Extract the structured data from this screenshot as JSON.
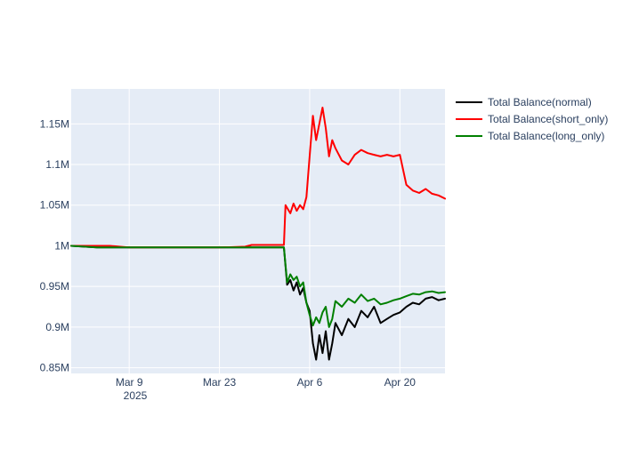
{
  "chart_data": {
    "type": "line",
    "title": "",
    "xlabel": "",
    "ylabel": "",
    "x_axis": {
      "type": "date",
      "range": [
        "2025-02-28",
        "2025-04-27"
      ],
      "tick_values": [
        "2025-03-09",
        "2025-03-23",
        "2025-04-06",
        "2025-04-20"
      ],
      "tick_labels": [
        "Mar 9",
        "Mar 23",
        "Apr 6",
        "Apr 20"
      ],
      "year_label": "2025"
    },
    "y_axis": {
      "range": [
        843000,
        1193000
      ],
      "tick_values": [
        850000,
        900000,
        950000,
        1000000,
        1050000,
        1100000,
        1150000
      ],
      "tick_labels": [
        "0.85M",
        "0.9M",
        "0.95M",
        "1M",
        "1.05M",
        "1.1M",
        "1.15M"
      ]
    },
    "grid": true,
    "legend_position": "top-right",
    "plot_background": "#e5ecf6",
    "series": [
      {
        "name": "Total Balance(normal)",
        "color": "#000000",
        "points": [
          [
            "2025-02-28",
            1000000
          ],
          [
            "2025-03-02",
            999000
          ],
          [
            "2025-03-04",
            998000
          ],
          [
            "2025-03-06",
            998000
          ],
          [
            "2025-03-09",
            998000
          ],
          [
            "2025-03-13",
            998000
          ],
          [
            "2025-03-17",
            998000
          ],
          [
            "2025-03-20",
            998000
          ],
          [
            "2025-03-23",
            998000
          ],
          [
            "2025-03-27",
            998000
          ],
          [
            "2025-03-31",
            998000
          ],
          [
            "2025-04-02",
            998000
          ],
          [
            "2025-04-02T12:00",
            952000
          ],
          [
            "2025-04-03",
            958000
          ],
          [
            "2025-04-03T12:00",
            945000
          ],
          [
            "2025-04-04",
            955000
          ],
          [
            "2025-04-04T12:00",
            940000
          ],
          [
            "2025-04-05",
            948000
          ],
          [
            "2025-04-05T12:00",
            930000
          ],
          [
            "2025-04-06",
            920000
          ],
          [
            "2025-04-06T12:00",
            880000
          ],
          [
            "2025-04-07",
            860000
          ],
          [
            "2025-04-07T12:00",
            890000
          ],
          [
            "2025-04-08",
            868000
          ],
          [
            "2025-04-08T12:00",
            895000
          ],
          [
            "2025-04-09",
            860000
          ],
          [
            "2025-04-09T12:00",
            880000
          ],
          [
            "2025-04-10",
            905000
          ],
          [
            "2025-04-11",
            890000
          ],
          [
            "2025-04-12",
            910000
          ],
          [
            "2025-04-13",
            900000
          ],
          [
            "2025-04-14",
            920000
          ],
          [
            "2025-04-15",
            912000
          ],
          [
            "2025-04-16",
            925000
          ],
          [
            "2025-04-17",
            905000
          ],
          [
            "2025-04-18",
            910000
          ],
          [
            "2025-04-19",
            915000
          ],
          [
            "2025-04-20",
            918000
          ],
          [
            "2025-04-21",
            925000
          ],
          [
            "2025-04-22",
            930000
          ],
          [
            "2025-04-23",
            928000
          ],
          [
            "2025-04-24",
            935000
          ],
          [
            "2025-04-25",
            937000
          ],
          [
            "2025-04-26",
            933000
          ],
          [
            "2025-04-27",
            935000
          ]
        ]
      },
      {
        "name": "Total Balance(short_only)",
        "color": "#ff0000",
        "points": [
          [
            "2025-02-28",
            1000000
          ],
          [
            "2025-03-02",
            1000000
          ],
          [
            "2025-03-04",
            1000000
          ],
          [
            "2025-03-06",
            1000000
          ],
          [
            "2025-03-09",
            998000
          ],
          [
            "2025-03-13",
            998000
          ],
          [
            "2025-03-17",
            998000
          ],
          [
            "2025-03-20",
            998000
          ],
          [
            "2025-03-23",
            998000
          ],
          [
            "2025-03-27",
            999000
          ],
          [
            "2025-03-28",
            1001000
          ],
          [
            "2025-03-31",
            1001000
          ],
          [
            "2025-04-02",
            1001000
          ],
          [
            "2025-04-02T06:00",
            1050000
          ],
          [
            "2025-04-03",
            1040000
          ],
          [
            "2025-04-03T12:00",
            1052000
          ],
          [
            "2025-04-04",
            1043000
          ],
          [
            "2025-04-04T12:00",
            1050000
          ],
          [
            "2025-04-05",
            1045000
          ],
          [
            "2025-04-05T12:00",
            1060000
          ],
          [
            "2025-04-06",
            1110000
          ],
          [
            "2025-04-06T12:00",
            1160000
          ],
          [
            "2025-04-07",
            1130000
          ],
          [
            "2025-04-07T12:00",
            1150000
          ],
          [
            "2025-04-08",
            1170000
          ],
          [
            "2025-04-08T12:00",
            1145000
          ],
          [
            "2025-04-09",
            1110000
          ],
          [
            "2025-04-09T12:00",
            1130000
          ],
          [
            "2025-04-10",
            1120000
          ],
          [
            "2025-04-11",
            1105000
          ],
          [
            "2025-04-12",
            1100000
          ],
          [
            "2025-04-13",
            1112000
          ],
          [
            "2025-04-14",
            1118000
          ],
          [
            "2025-04-15",
            1114000
          ],
          [
            "2025-04-16",
            1112000
          ],
          [
            "2025-04-17",
            1110000
          ],
          [
            "2025-04-18",
            1112000
          ],
          [
            "2025-04-19",
            1110000
          ],
          [
            "2025-04-20",
            1112000
          ],
          [
            "2025-04-21",
            1075000
          ],
          [
            "2025-04-22",
            1068000
          ],
          [
            "2025-04-23",
            1065000
          ],
          [
            "2025-04-24",
            1070000
          ],
          [
            "2025-04-25",
            1064000
          ],
          [
            "2025-04-26",
            1062000
          ],
          [
            "2025-04-27",
            1058000
          ]
        ]
      },
      {
        "name": "Total Balance(long_only)",
        "color": "#008000",
        "points": [
          [
            "2025-02-28",
            1000000
          ],
          [
            "2025-03-02",
            999000
          ],
          [
            "2025-03-04",
            998000
          ],
          [
            "2025-03-06",
            998000
          ],
          [
            "2025-03-09",
            998000
          ],
          [
            "2025-03-13",
            998000
          ],
          [
            "2025-03-17",
            998000
          ],
          [
            "2025-03-20",
            998000
          ],
          [
            "2025-03-23",
            998000
          ],
          [
            "2025-03-27",
            998000
          ],
          [
            "2025-03-31",
            998000
          ],
          [
            "2025-04-02",
            998000
          ],
          [
            "2025-04-02T12:00",
            955000
          ],
          [
            "2025-04-03",
            965000
          ],
          [
            "2025-04-03T12:00",
            958000
          ],
          [
            "2025-04-04",
            962000
          ],
          [
            "2025-04-04T12:00",
            950000
          ],
          [
            "2025-04-05",
            955000
          ],
          [
            "2025-04-05T12:00",
            930000
          ],
          [
            "2025-04-06",
            915000
          ],
          [
            "2025-04-06T12:00",
            902000
          ],
          [
            "2025-04-07",
            912000
          ],
          [
            "2025-04-07T12:00",
            905000
          ],
          [
            "2025-04-08",
            918000
          ],
          [
            "2025-04-08T12:00",
            925000
          ],
          [
            "2025-04-09",
            900000
          ],
          [
            "2025-04-09T12:00",
            910000
          ],
          [
            "2025-04-10",
            932000
          ],
          [
            "2025-04-11",
            925000
          ],
          [
            "2025-04-12",
            935000
          ],
          [
            "2025-04-13",
            930000
          ],
          [
            "2025-04-14",
            940000
          ],
          [
            "2025-04-15",
            932000
          ],
          [
            "2025-04-16",
            935000
          ],
          [
            "2025-04-17",
            928000
          ],
          [
            "2025-04-18",
            930000
          ],
          [
            "2025-04-19",
            933000
          ],
          [
            "2025-04-20",
            935000
          ],
          [
            "2025-04-21",
            938000
          ],
          [
            "2025-04-22",
            941000
          ],
          [
            "2025-04-23",
            940000
          ],
          [
            "2025-04-24",
            943000
          ],
          [
            "2025-04-25",
            944000
          ],
          [
            "2025-04-26",
            942000
          ],
          [
            "2025-04-27",
            943000
          ]
        ]
      }
    ]
  }
}
